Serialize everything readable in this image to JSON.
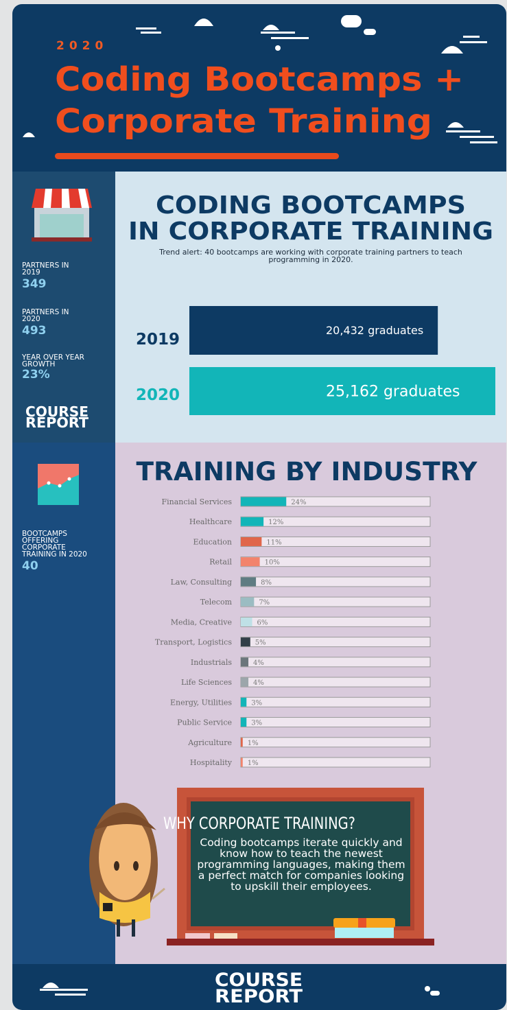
{
  "header": {
    "year": "2020",
    "title_lines": [
      "Coding Bootcamps +",
      "Corporate Training"
    ]
  },
  "sidebar_stats": [
    {
      "label": "PARTNERS IN 2019",
      "value": "349"
    },
    {
      "label": "PARTNERS IN 2020",
      "value": "493"
    },
    {
      "label": "YEAR OVER YEAR GROWTH",
      "value": "23%"
    }
  ],
  "sidebar_logo_lines": [
    "COURSE",
    "REPORT"
  ],
  "sidebar2": {
    "label": "BOOTCAMPS OFFERING CORPORATE TRAINING IN 2020",
    "value": "40"
  },
  "chart_data": [
    {
      "type": "bar",
      "orientation": "horizontal",
      "title_lines": [
        "CODING BOOTCAMPS",
        "IN CORPORATE TRAINING"
      ],
      "subtitle": "Trend alert: 40 bootcamps are working with corporate training partners to teach programming in 2020.",
      "categories": [
        "2019",
        "2020"
      ],
      "values": [
        20432,
        25162
      ],
      "value_labels": [
        "20,432 graduates",
        "25,162 graduates"
      ],
      "colors": [
        "#0d3a63",
        "#12b5b8"
      ]
    },
    {
      "type": "bar",
      "orientation": "horizontal",
      "title": "TRAINING BY INDUSTRY",
      "xlim": [
        0,
        100
      ],
      "categories": [
        "Financial Services",
        "Healthcare",
        "Education",
        "Retail",
        "Law, Consulting",
        "Telecom",
        "Media, Creative",
        "Transport, Logistics",
        "Industrials",
        "Life Sciences",
        "Energy, Utilities",
        "Public Service",
        "Agriculture",
        "Hospitality"
      ],
      "values": [
        24,
        12,
        11,
        10,
        8,
        7,
        6,
        5,
        4,
        4,
        3,
        3,
        1,
        1
      ],
      "value_labels": [
        "24%",
        "12%",
        "11%",
        "10%",
        "8%",
        "7%",
        "6%",
        "5%",
        "4%",
        "4%",
        "3%",
        "3%",
        "1%",
        "1%"
      ],
      "colors": [
        "#12b5b8",
        "#12b5b8",
        "#e0664a",
        "#f2836c",
        "#5f7c82",
        "#9bbcc2",
        "#bfe0e6",
        "#323f48",
        "#6b767b",
        "#9ca6ab",
        "#12b5b8",
        "#12b5b8",
        "#e0664a",
        "#f2836c"
      ]
    }
  ],
  "callout": {
    "title": "WHY CORPORATE TRAINING?",
    "text": "Coding bootcamps iterate quickly and know how to teach the newest programming languages, making them a perfect match for companies looking to upskill their employees."
  },
  "footer_logo_lines": [
    "COURSE",
    "REPORT"
  ]
}
